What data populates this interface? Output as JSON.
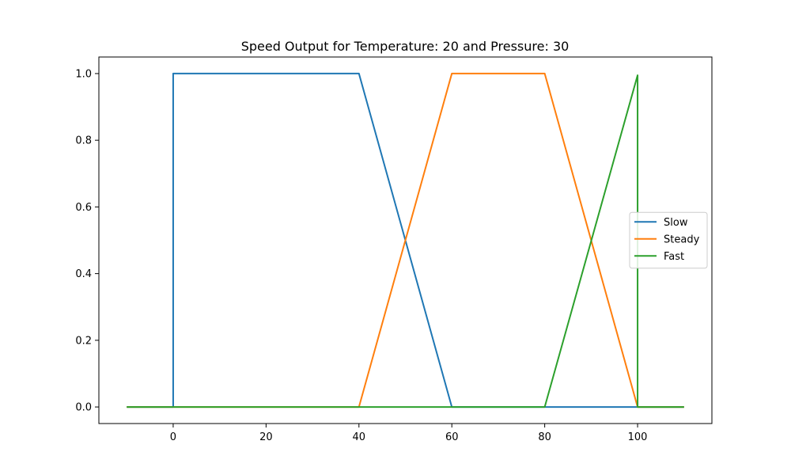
{
  "chart_data": {
    "type": "line",
    "title": "Speed Output for Temperature: 20 and Pressure: 30",
    "xlabel": "",
    "ylabel": "",
    "xlim": [
      -16,
      116
    ],
    "ylim": [
      -0.0497,
      1.0497
    ],
    "x_ticks": [
      0,
      20,
      40,
      60,
      80,
      100
    ],
    "y_ticks": [
      0.0,
      0.2,
      0.4,
      0.6,
      0.8,
      1.0
    ],
    "x_tick_labels": [
      "0",
      "20",
      "40",
      "60",
      "80",
      "100"
    ],
    "y_tick_labels": [
      "0.0",
      "0.2",
      "0.4",
      "0.6",
      "0.8",
      "1.0"
    ],
    "grid": false,
    "legend_position": "center-right",
    "series": [
      {
        "name": "Slow",
        "color": "#1f77b4",
        "points": [
          [
            -10,
            0
          ],
          [
            0,
            0
          ],
          [
            0,
            1
          ],
          [
            40,
            1
          ],
          [
            60,
            0
          ],
          [
            80,
            0
          ],
          [
            100,
            0
          ],
          [
            110,
            0
          ]
        ]
      },
      {
        "name": "Steady",
        "color": "#ff7f0e",
        "points": [
          [
            -10,
            0
          ],
          [
            40,
            0
          ],
          [
            60,
            1
          ],
          [
            80,
            1
          ],
          [
            100,
            0
          ],
          [
            110,
            0
          ]
        ]
      },
      {
        "name": "Fast",
        "color": "#2ca02c",
        "points": [
          [
            -10,
            0
          ],
          [
            80,
            0
          ],
          [
            100,
            0.995
          ],
          [
            100,
            0
          ],
          [
            110,
            0
          ]
        ]
      }
    ]
  }
}
